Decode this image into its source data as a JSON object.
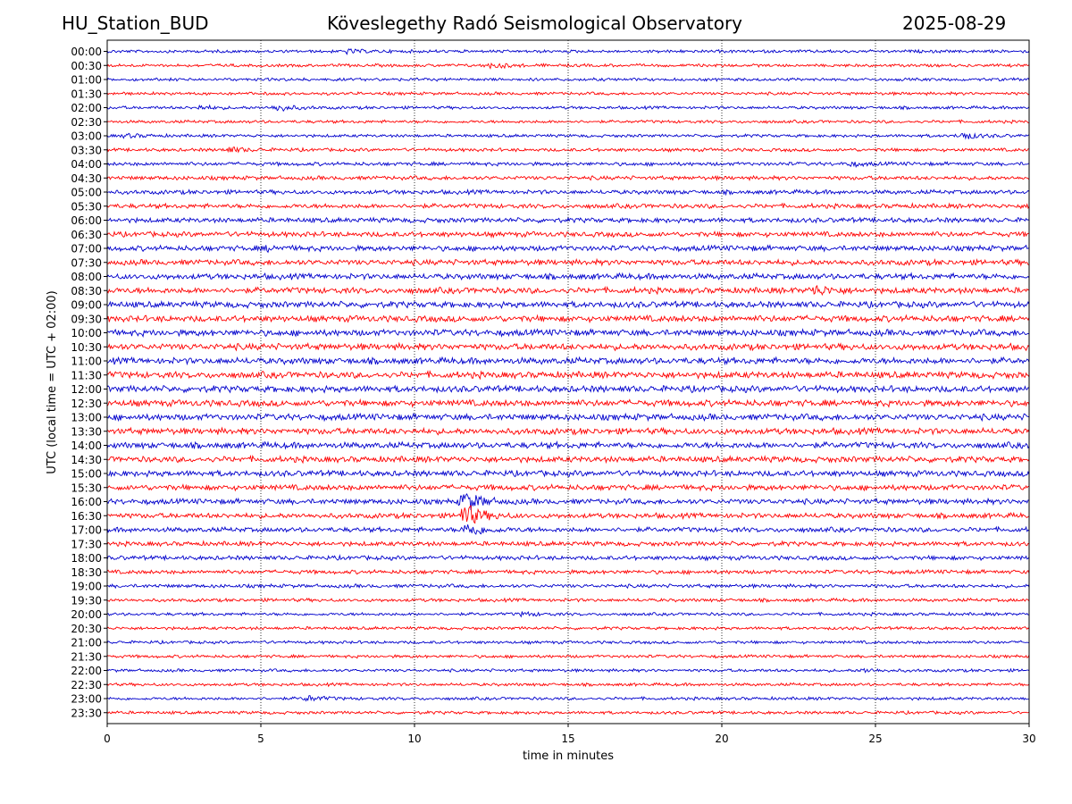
{
  "header": {
    "station": "HU_Station_BUD",
    "observatory": "Köveslegethy Radó Seismological Observatory",
    "date": "2025-08-29"
  },
  "chart_data": {
    "type": "line",
    "title": "Köveslegethy Radó Seismological Observatory",
    "xlabel": "time in minutes",
    "ylabel": "UTC (local time = UTC + 02:00)",
    "xlim": [
      0,
      30
    ],
    "xticks": [
      0,
      5,
      10,
      15,
      20,
      25,
      30
    ],
    "rows": [
      "00:00",
      "00:30",
      "01:00",
      "01:30",
      "02:00",
      "02:30",
      "03:00",
      "03:30",
      "04:00",
      "04:30",
      "05:00",
      "05:30",
      "06:00",
      "06:30",
      "07:00",
      "07:30",
      "08:00",
      "08:30",
      "09:00",
      "09:30",
      "10:00",
      "10:30",
      "11:00",
      "11:30",
      "12:00",
      "12:30",
      "13:00",
      "13:30",
      "14:00",
      "14:30",
      "15:00",
      "15:30",
      "16:00",
      "16:30",
      "17:00",
      "17:30",
      "18:00",
      "18:30",
      "19:00",
      "19:30",
      "20:00",
      "20:30",
      "21:00",
      "21:30",
      "22:00",
      "22:30",
      "23:00",
      "23:30"
    ],
    "trace_colors": [
      "#0000cc",
      "#ff0000"
    ],
    "grid": "vertical dotted",
    "events": [
      {
        "row": "00:00",
        "minute": 7.8,
        "strength": 2
      },
      {
        "row": "00:30",
        "minute": 12.5,
        "strength": 3
      },
      {
        "row": "02:00",
        "minute": 5.5,
        "strength": 4
      },
      {
        "row": "02:00",
        "minute": 3.0,
        "strength": 2
      },
      {
        "row": "03:00",
        "minute": 27.8,
        "strength": 4
      },
      {
        "row": "03:00",
        "minute": 0.6,
        "strength": 2
      },
      {
        "row": "03:30",
        "minute": 3.9,
        "strength": 3
      },
      {
        "row": "04:00",
        "minute": 24.1,
        "strength": 2
      },
      {
        "row": "07:00",
        "minute": 5.2,
        "strength": 2
      },
      {
        "row": "08:30",
        "minute": 23.0,
        "strength": 5
      },
      {
        "row": "16:00",
        "minute": 11.6,
        "strength": 12
      },
      {
        "row": "16:30",
        "minute": 11.6,
        "strength": 14
      },
      {
        "row": "17:00",
        "minute": 11.7,
        "strength": 8
      },
      {
        "row": "20:00",
        "minute": 13.5,
        "strength": 2
      },
      {
        "row": "22:00",
        "minute": 24.6,
        "strength": 2
      },
      {
        "row": "23:00",
        "minute": 6.5,
        "strength": 3
      }
    ]
  }
}
